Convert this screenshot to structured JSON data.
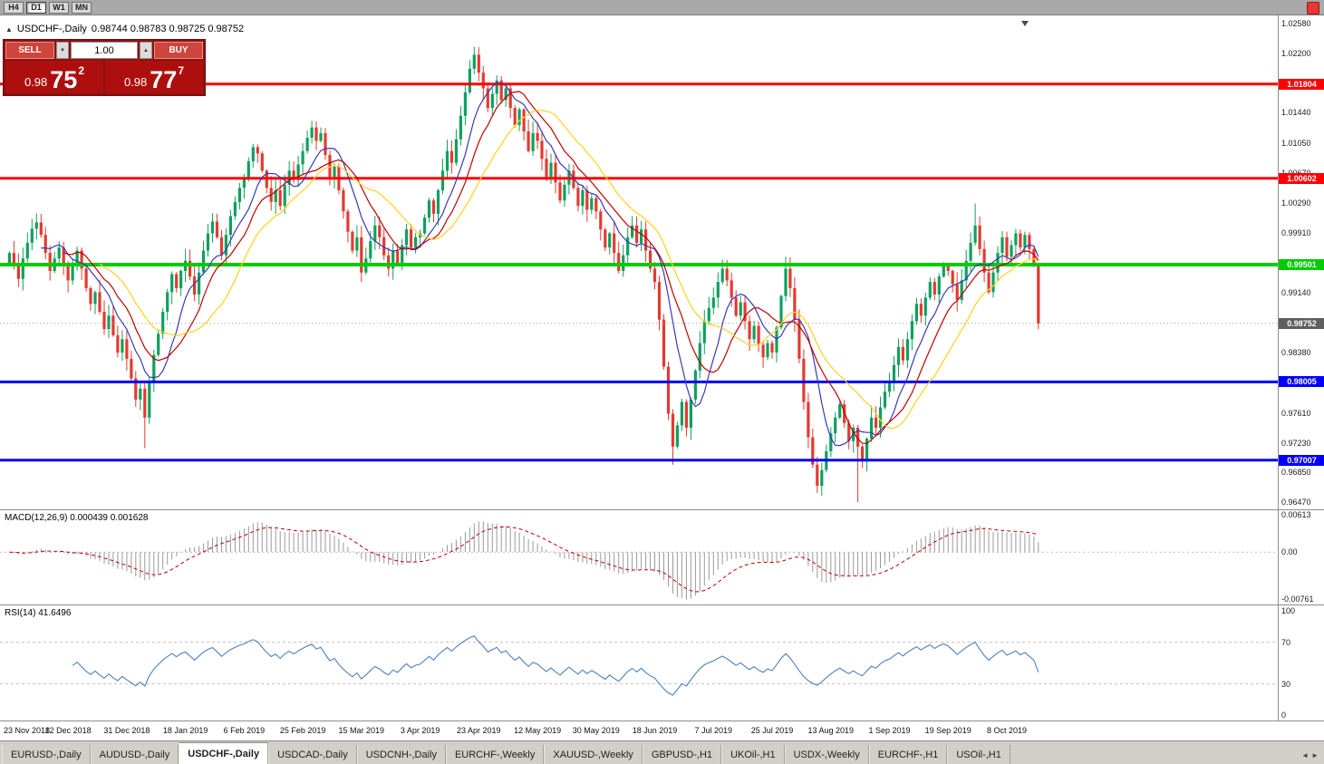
{
  "topbar": {
    "timeframes": [
      {
        "label": "H4",
        "active": false
      },
      {
        "label": "D1",
        "active": true
      },
      {
        "label": "W1",
        "active": false
      },
      {
        "label": "MN",
        "active": false
      }
    ]
  },
  "chart": {
    "collapse_icon": "▲",
    "symbol": "USDCHF-,Daily",
    "ohlc": "0.98744 0.98783 0.98725 0.98752",
    "open": "0.98744",
    "high": "0.98783",
    "low": "0.98725",
    "close": "0.98752"
  },
  "trade_panel": {
    "sell_label": "SELL",
    "buy_label": "BUY",
    "volume": "1.00",
    "volume_down": "▼",
    "volume_up": "▲",
    "sell_price": {
      "base": "0.98",
      "big": "75",
      "sup": "2"
    },
    "buy_price": {
      "base": "0.98",
      "big": "77",
      "sup": "7"
    }
  },
  "chart_data": {
    "type": "candlestick",
    "symbol": "USDCHF",
    "timeframe": "Daily",
    "price_range": [
      0.9638,
      1.0268
    ],
    "bars_per_label": 13,
    "x_labels": [
      "23 Nov 2018",
      "12 Dec 2018",
      "31 Dec 2018",
      "18 Jan 2019",
      "6 Feb 2019",
      "25 Feb 2019",
      "15 Mar 2019",
      "3 Apr 2019",
      "23 Apr 2019",
      "12 May 2019",
      "30 May 2019",
      "18 Jun 2019",
      "7 Jul 2019",
      "25 Jul 2019",
      "13 Aug 2019",
      "1 Sep 2019",
      "19 Sep 2019",
      "8 Oct 2019"
    ],
    "first_open": 0.995,
    "closes": [
      0.9965,
      0.995,
      0.9932,
      0.9958,
      0.9978,
      0.9996,
      1.0004,
      0.9988,
      0.9965,
      0.9942,
      0.9958,
      0.9972,
      0.9948,
      0.993,
      0.9952,
      0.9968,
      0.9945,
      0.992,
      0.99,
      0.9915,
      0.989,
      0.9868,
      0.9885,
      0.986,
      0.9838,
      0.9855,
      0.983,
      0.9805,
      0.9778,
      0.9792,
      0.9755,
      0.98,
      0.9835,
      0.9862,
      0.989,
      0.9915,
      0.9938,
      0.992,
      0.9942,
      0.9955,
      0.9935,
      0.9912,
      0.994,
      0.9968,
      0.999,
      1.0005,
      0.9985,
      0.9962,
      0.9988,
      1.0012,
      1.003,
      1.0048,
      1.006,
      1.0082,
      1.01,
      1.0092,
      1.007,
      1.0048,
      1.003,
      1.0045,
      1.0025,
      1.0052,
      1.007,
      1.0058,
      1.0078,
      1.0095,
      1.0112,
      1.0125,
      1.0108,
      1.0118,
      1.009,
      1.0062,
      1.0075,
      1.0045,
      1.0018,
      0.9992,
      0.9968,
      0.9985,
      0.994,
      0.9958,
      0.998,
      1.0,
      0.9985,
      0.9962,
      0.9945,
      0.9968,
      0.9952,
      0.9975,
      0.9995,
      0.9972,
      0.9985,
      0.999,
      1.001,
      1.0032,
      1.0015,
      1.0045,
      1.007,
      1.0095,
      1.008,
      1.011,
      1.014,
      1.017,
      1.02,
      1.0218,
      1.0195,
      1.0175,
      1.015,
      1.0168,
      1.0185,
      1.016,
      1.0175,
      1.015,
      1.0128,
      1.0148,
      1.012,
      1.0095,
      1.0118,
      1.0108,
      1.0085,
      1.0062,
      1.008,
      1.0055,
      1.0032,
      1.0052,
      1.007,
      1.0048,
      1.0025,
      1.0045,
      1.002,
      1.0035,
      1.0018,
      0.9995,
      0.9972,
      0.999,
      0.9965,
      0.9942,
      0.9962,
      0.9985,
      1.0,
      0.9978,
      0.9995,
      0.9968,
      0.9945,
      0.9928,
      0.988,
      0.982,
      0.976,
      0.9718,
      0.9745,
      0.9775,
      0.9742,
      0.9778,
      0.9815,
      0.985,
      0.9878,
      0.9895,
      0.9908,
      0.9928,
      0.9945,
      0.993,
      0.9908,
      0.9885,
      0.9902,
      0.9878,
      0.9855,
      0.9872,
      0.9848,
      0.9832,
      0.985,
      0.9838,
      0.987,
      0.991,
      0.9945,
      0.992,
      0.988,
      0.983,
      0.9775,
      0.973,
      0.9695,
      0.9668,
      0.9688,
      0.9712,
      0.9735,
      0.9755,
      0.9772,
      0.9748,
      0.9725,
      0.9742,
      0.9718,
      0.97,
      0.9728,
      0.9755,
      0.9742,
      0.9768,
      0.9788,
      0.98,
      0.9822,
      0.9845,
      0.9828,
      0.9855,
      0.9878,
      0.99,
      0.9885,
      0.9908,
      0.9928,
      0.9912,
      0.9935,
      0.995,
      0.9942,
      0.9925,
      0.9905,
      0.993,
      0.9955,
      0.9978,
      1.0,
      0.997,
      0.994,
      0.9915,
      0.994,
      0.9965,
      0.9985,
      0.996,
      0.9975,
      0.999,
      0.9972,
      0.9988,
      0.997,
      0.995,
      0.98752
    ],
    "wick_overrides": {
      "30": {
        "low": 0.9716
      },
      "103": {
        "high": 1.0226
      },
      "104": {
        "high": 1.0222
      },
      "147": {
        "low": 0.9695
      },
      "179": {
        "low": 0.9659
      },
      "188": {
        "low": 0.9647
      },
      "214": {
        "high": 1.0028
      },
      "228": {
        "low": 0.9868
      }
    },
    "moving_averages": [
      {
        "period": 8,
        "color": "#3a3ab4"
      },
      {
        "period": 13,
        "color": "#c00000"
      },
      {
        "period": 21,
        "color": "#ffd21e"
      }
    ],
    "levels": [
      {
        "price": 1.01804,
        "color": "#ff0000",
        "width": 3,
        "label": "1.01804",
        "label_bg": "#ff0000"
      },
      {
        "price": 1.00602,
        "color": "#ff0000",
        "width": 3,
        "label": "1.00602",
        "label_bg": "#ff0000"
      },
      {
        "price": 0.99501,
        "color": "#00cc00",
        "width": 4,
        "label": "0.99501",
        "label_bg": "#00cc00"
      },
      {
        "price": 0.98005,
        "color": "#0000ff",
        "width": 3,
        "label": "0.98005",
        "label_bg": "#0000ff"
      },
      {
        "price": 0.97007,
        "color": "#0000ff",
        "width": 3,
        "label": "0.97007",
        "label_bg": "#0000ff"
      }
    ],
    "current_price": {
      "value": 0.98752,
      "text": "0.98752"
    },
    "price_axis_ticks": [
      "1.02580",
      "1.02200",
      "1.01820",
      "1.01440",
      "1.01050",
      "1.00670",
      "1.00290",
      "0.99910",
      "0.99530",
      "0.99140",
      "0.98760",
      "0.98380",
      "0.98000",
      "0.97610",
      "0.97230",
      "0.96850",
      "0.96470"
    ],
    "indicators": {
      "macd": {
        "label": "MACD(12,26,9) 0.000439 0.001628",
        "fast": 12,
        "slow": 26,
        "signal": 9,
        "value": "0.000439",
        "signal_value": "0.001628",
        "range": [
          -0.0085,
          0.0068
        ],
        "axis_labels": [
          {
            "text": "0.00613",
            "value": 0.00613
          },
          {
            "text": "0.00",
            "value": 0
          },
          {
            "text": "-0.00761",
            "value": -0.00761
          }
        ]
      },
      "rsi": {
        "label": "RSI(14) 41.6496",
        "period": 14,
        "value": "41.6496",
        "levels": [
          70,
          30
        ],
        "axis_labels": [
          {
            "text": "100",
            "value": 100
          },
          {
            "text": "70",
            "value": 70
          },
          {
            "text": "30",
            "value": 30
          },
          {
            "text": "0",
            "value": 0
          }
        ]
      }
    }
  },
  "tabs": {
    "items": [
      {
        "label": "EURUSD-,Daily",
        "active": false
      },
      {
        "label": "AUDUSD-,Daily",
        "active": false
      },
      {
        "label": "USDCHF-,Daily",
        "active": true
      },
      {
        "label": "USDCAD-,Daily",
        "active": false
      },
      {
        "label": "USDCNH-,Daily",
        "active": false
      },
      {
        "label": "EURCHF-,Weekly",
        "active": false
      },
      {
        "label": "XAUUSD-,Weekly",
        "active": false
      },
      {
        "label": "GBPUSD-,H1",
        "active": false
      },
      {
        "label": "UKOil-,H1",
        "active": false
      },
      {
        "label": "USDX-,Weekly",
        "active": false
      },
      {
        "label": "EURCHF-,H1",
        "active": false
      },
      {
        "label": "USOil-,H1",
        "active": false
      }
    ]
  },
  "colors": {
    "candle_up": "#0fa05f",
    "candle_down": "#e13b30",
    "macd_hist": "#9a9a9a",
    "macd_signal": "#c00000",
    "rsi_line": "#4f81bd",
    "current_badge": "#5f5f5f",
    "current_line": "#9a9a9a"
  }
}
